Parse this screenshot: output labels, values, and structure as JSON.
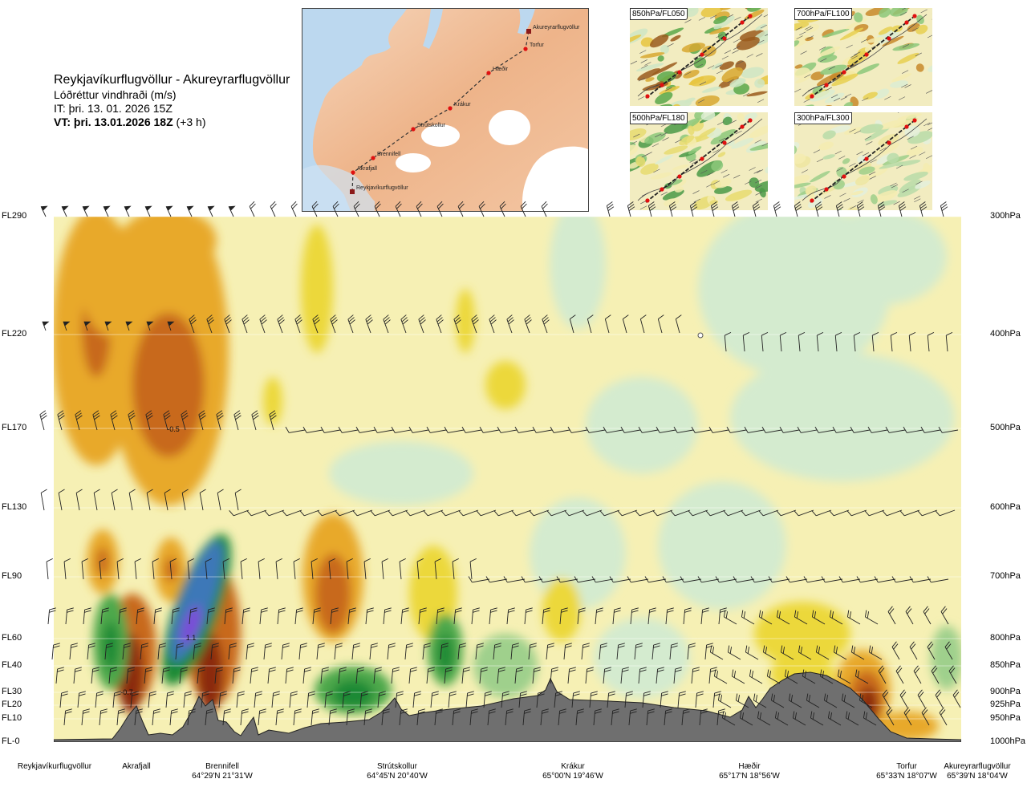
{
  "header": {
    "title": "Reykjavíkurflugvöllur - Akureyrarflugvöllur",
    "subtitle": "Lóðréttur vindhraði (m/s)",
    "it": "IT: þri. 13. 01. 2026 15Z",
    "vt_bold": "VT: þri. 13.01.2026 18Z",
    "vt_suffix": " (+3 h)"
  },
  "route_map": {
    "points": [
      {
        "label": "Akureyrarflugvöllur"
      },
      {
        "label": "Torfur"
      },
      {
        "label": "Hæðir"
      },
      {
        "label": "Krákur"
      },
      {
        "label": "Strútskollur"
      },
      {
        "label": "Brennifell"
      },
      {
        "label": "Akrafjall"
      },
      {
        "label": "Reykjavíkurflugvöllur"
      }
    ]
  },
  "mini_maps": [
    {
      "label": "850hPa/FL050"
    },
    {
      "label": "700hPa/FL100"
    },
    {
      "label": "500hPa/FL180"
    },
    {
      "label": "300hPa/FL300"
    }
  ],
  "chart_data": {
    "type": "heatmap",
    "title": "Lóðréttur vindhraði (m/s)",
    "left_axis": [
      "FL290",
      "FL220",
      "FL170",
      "FL130",
      "FL90",
      "FL60",
      "FL40",
      "FL30",
      "FL20",
      "FL10",
      "FL-0"
    ],
    "right_axis": [
      "300hPa",
      "400hPa",
      "500hPa",
      "600hPa",
      "700hPa",
      "800hPa",
      "850hPa",
      "900hPa",
      "925hPa",
      "950hPa",
      "1000hPa"
    ],
    "waypoints": [
      {
        "name": "Reykjavíkurflugvöllur",
        "coord": ""
      },
      {
        "name": "Akrafjall",
        "coord": ""
      },
      {
        "name": "Brennifell",
        "coord": "64°29'N 21°31'W"
      },
      {
        "name": "Strútskollur",
        "coord": "64°45'N 20°40'W"
      },
      {
        "name": "Krákur",
        "coord": "65°00'N 19°46'W"
      },
      {
        "name": "Hæðir",
        "coord": "65°17'N 18°56'W"
      },
      {
        "name": "Torfur",
        "coord": "65°33'N 18°07'W"
      },
      {
        "name": "Akureyrarflugvöllur",
        "coord": "65°39'N 18°04'W"
      }
    ],
    "annotations": [
      "-0.5",
      "1.1",
      "-0.7"
    ],
    "colors": {
      "strong_down": "#8b2a10",
      "down": "#c8691e",
      "mod_down": "#e8a92a",
      "weak_down": "#ecd83a",
      "slight_down": "#f5efa6",
      "neutral": "#fafae0",
      "slight_up": "#d4ebcf",
      "weak_up": "#9fd08c",
      "mod_up": "#4ea84c",
      "up": "#1f8a35",
      "strong_up": "#3d78b8",
      "very_strong_up": "#7b4bd8",
      "terrain": "#6f6f6f"
    }
  }
}
